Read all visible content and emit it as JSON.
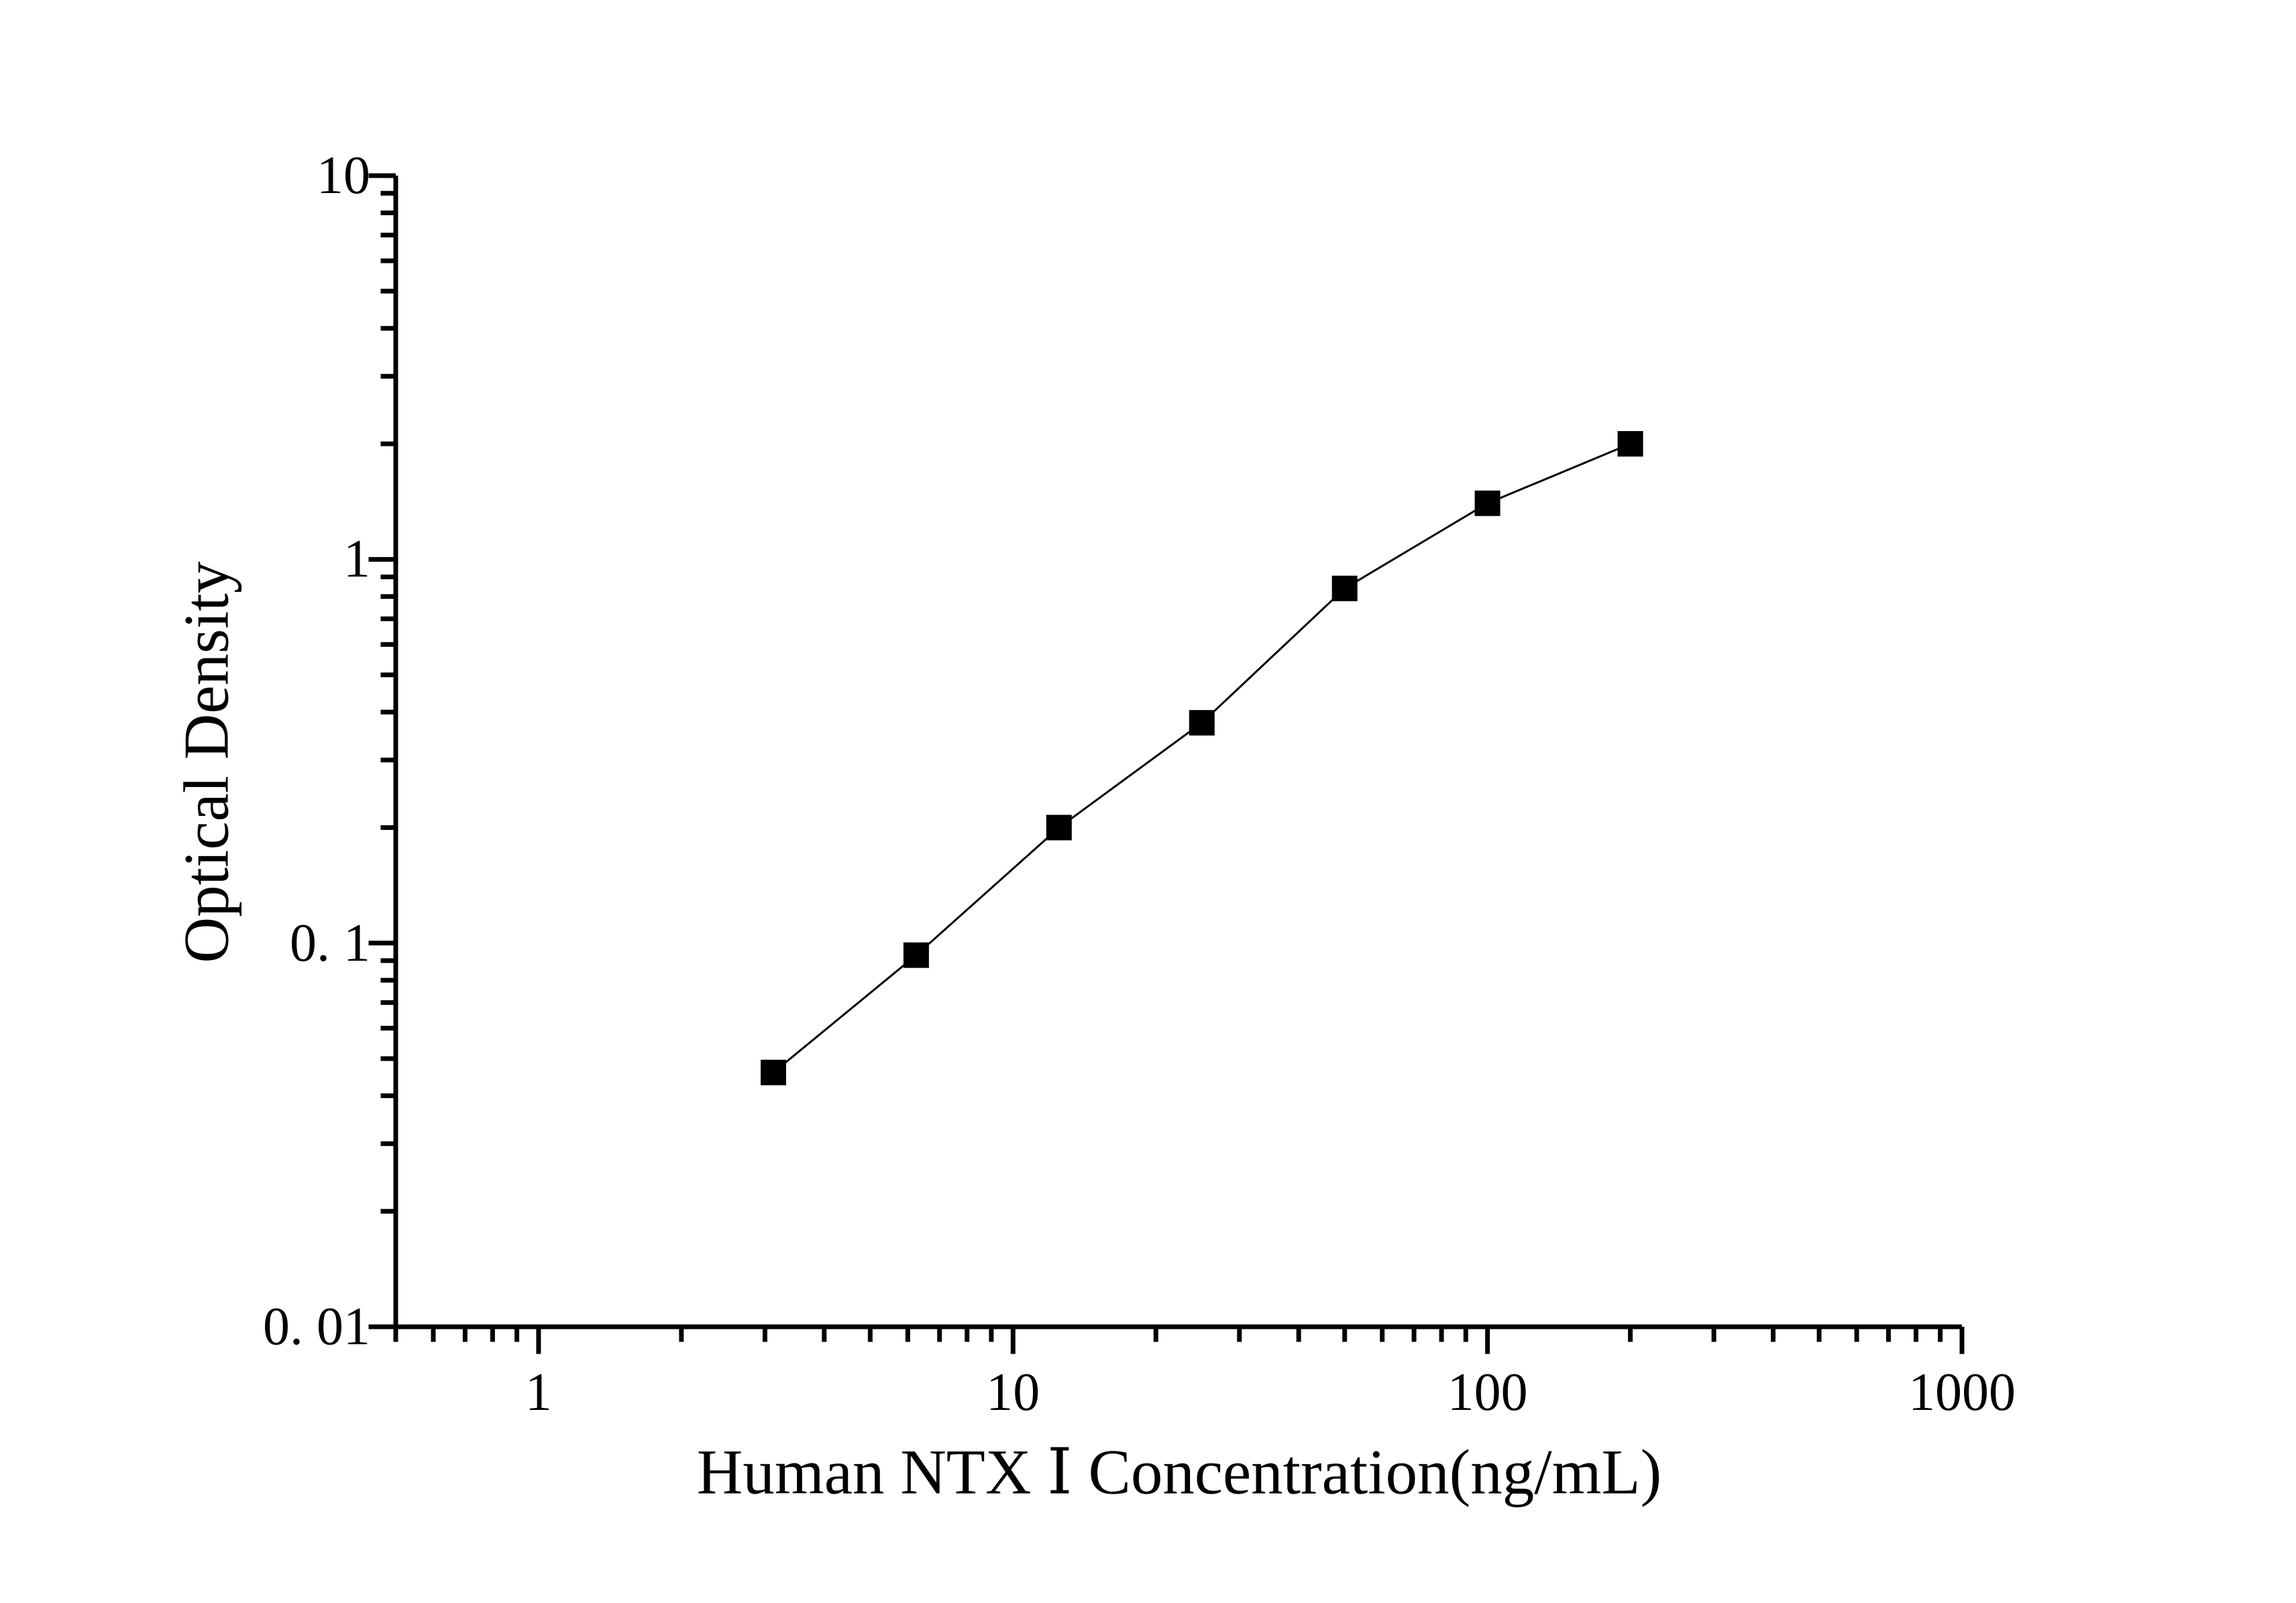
{
  "chart_data": {
    "type": "line",
    "subtype": "scatter-line-standard-curve",
    "title": "",
    "xlabel": "Human NTX Ⅰ Concentration(ng/mL)",
    "ylabel": "Optical Density",
    "x_scale": "log",
    "y_scale": "log",
    "xlim": [
      0.5,
      1000
    ],
    "ylim": [
      0.01,
      10
    ],
    "x_major_ticks": [
      1,
      10,
      100,
      1000
    ],
    "x_tick_labels": [
      "1",
      "10",
      "100",
      "1000"
    ],
    "y_major_ticks": [
      0.01,
      0.1,
      1,
      10
    ],
    "y_tick_labels": [
      "0. 01",
      "0. 1",
      "1",
      "10"
    ],
    "grid": false,
    "legend": "none",
    "marker": "filled-square",
    "series": [
      {
        "name": "standard-curve",
        "x": [
          3.125,
          6.25,
          12.5,
          25,
          50,
          100,
          200
        ],
        "y": [
          0.046,
          0.093,
          0.2,
          0.375,
          0.84,
          1.4,
          2.0
        ]
      }
    ],
    "colors": {
      "line": "#000000",
      "marker": "#000000",
      "axis": "#000000",
      "text": "#000000",
      "background": "#ffffff"
    }
  }
}
